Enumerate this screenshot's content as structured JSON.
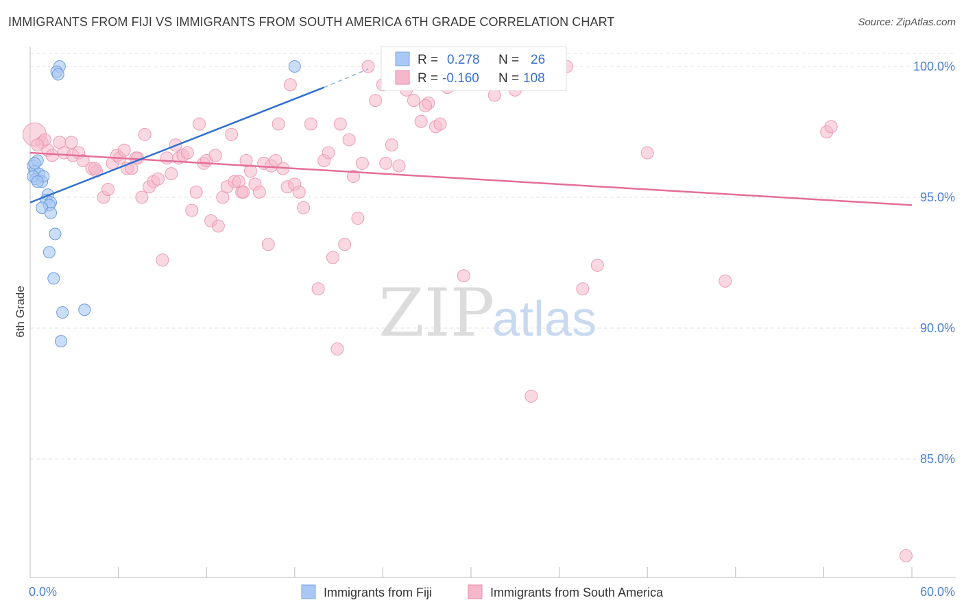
{
  "header": {
    "title": "IMMIGRANTS FROM FIJI VS IMMIGRANTS FROM SOUTH AMERICA 6TH GRADE CORRELATION CHART",
    "source": "Source: ZipAtlas.com"
  },
  "watermark": {
    "zip": "ZIP",
    "atlas": "atlas"
  },
  "chart_data": {
    "type": "scatter",
    "title": "IMMIGRANTS FROM FIJI VS IMMIGRANTS FROM SOUTH AMERICA 6TH GRADE CORRELATION CHART",
    "xlabel": "",
    "ylabel": "6th Grade",
    "xlim": [
      0,
      60
    ],
    "ylim": [
      80.5,
      100.8
    ],
    "x_tick_labels": [
      "0.0%",
      "60.0%"
    ],
    "y_ticks": [
      100,
      95,
      90,
      85
    ],
    "y_tick_labels": [
      "100.0%",
      "95.0%",
      "90.0%",
      "85.0%"
    ],
    "grid": true,
    "legend_position": "top-center",
    "colors": {
      "fiji": "#a9c8f3",
      "fiji_line": "#2f6fd0",
      "sa": "#f5b8ca",
      "sa_line": "#e46e98"
    },
    "legend": [
      {
        "r_label": "R =",
        "r": "0.278",
        "n_label": "N =",
        "n": "26"
      },
      {
        "r_label": "R =",
        "r": "-0.160",
        "n_label": "N =",
        "n": "108"
      }
    ],
    "series": [
      {
        "name": "Immigrants from Fiji",
        "trend": {
          "x": [
            0,
            20
          ],
          "y": [
            94.8,
            99.2
          ],
          "dashed_to": [
            23,
            99.9
          ]
        },
        "points": [
          [
            2.0,
            100.0
          ],
          [
            1.8,
            99.8
          ],
          [
            1.9,
            99.7
          ],
          [
            18.0,
            100.0
          ],
          [
            0.2,
            96.2
          ],
          [
            0.5,
            96.4
          ],
          [
            0.3,
            96.0
          ],
          [
            0.6,
            95.9
          ],
          [
            0.4,
            95.7
          ],
          [
            0.2,
            95.8
          ],
          [
            0.8,
            95.6
          ],
          [
            0.9,
            95.8
          ],
          [
            0.5,
            95.6
          ],
          [
            1.2,
            95.1
          ],
          [
            1.1,
            94.9
          ],
          [
            1.4,
            94.8
          ],
          [
            1.3,
            94.7
          ],
          [
            0.8,
            94.6
          ],
          [
            1.4,
            94.4
          ],
          [
            1.7,
            93.6
          ],
          [
            1.3,
            92.9
          ],
          [
            1.6,
            91.9
          ],
          [
            2.2,
            90.6
          ],
          [
            3.7,
            90.7
          ],
          [
            2.1,
            89.5
          ],
          [
            0.3,
            96.3
          ]
        ]
      },
      {
        "name": "Immigrants from South America",
        "trend": {
          "x": [
            0,
            60
          ],
          "y": [
            96.7,
            94.7
          ]
        },
        "points": [
          [
            0.3,
            97.4
          ],
          [
            0.8,
            97.1
          ],
          [
            1.2,
            96.8
          ],
          [
            1.5,
            96.6
          ],
          [
            2.0,
            97.1
          ],
          [
            2.3,
            96.7
          ],
          [
            2.8,
            97.1
          ],
          [
            2.9,
            96.6
          ],
          [
            3.3,
            96.7
          ],
          [
            3.6,
            96.4
          ],
          [
            4.2,
            96.1
          ],
          [
            4.5,
            96.0
          ],
          [
            5.0,
            95.0
          ],
          [
            5.3,
            95.3
          ],
          [
            5.6,
            96.3
          ],
          [
            5.9,
            96.6
          ],
          [
            6.1,
            96.5
          ],
          [
            6.4,
            96.8
          ],
          [
            6.6,
            96.1
          ],
          [
            6.9,
            96.1
          ],
          [
            7.3,
            96.5
          ],
          [
            7.6,
            95.0
          ],
          [
            7.8,
            97.4
          ],
          [
            8.1,
            95.4
          ],
          [
            8.4,
            95.6
          ],
          [
            8.7,
            95.7
          ],
          [
            9.0,
            92.6
          ],
          [
            9.3,
            96.5
          ],
          [
            9.6,
            95.9
          ],
          [
            9.9,
            97.0
          ],
          [
            10.1,
            96.5
          ],
          [
            10.4,
            96.6
          ],
          [
            10.7,
            96.7
          ],
          [
            11.0,
            94.5
          ],
          [
            11.3,
            95.2
          ],
          [
            11.5,
            97.8
          ],
          [
            11.8,
            96.3
          ],
          [
            12.0,
            96.4
          ],
          [
            12.3,
            94.1
          ],
          [
            12.6,
            96.6
          ],
          [
            12.8,
            93.9
          ],
          [
            13.1,
            95.0
          ],
          [
            13.4,
            95.4
          ],
          [
            13.7,
            97.4
          ],
          [
            13.9,
            95.6
          ],
          [
            14.2,
            95.6
          ],
          [
            14.4,
            95.2
          ],
          [
            14.7,
            96.4
          ],
          [
            15.0,
            96.0
          ],
          [
            15.3,
            95.5
          ],
          [
            15.6,
            95.2
          ],
          [
            15.9,
            96.3
          ],
          [
            16.2,
            93.2
          ],
          [
            16.4,
            96.2
          ],
          [
            16.7,
            96.4
          ],
          [
            16.9,
            97.8
          ],
          [
            17.2,
            96.1
          ],
          [
            17.5,
            95.4
          ],
          [
            17.7,
            99.3
          ],
          [
            18.0,
            95.5
          ],
          [
            18.3,
            95.2
          ],
          [
            18.6,
            94.6
          ],
          [
            19.1,
            97.8
          ],
          [
            19.6,
            91.5
          ],
          [
            20.0,
            96.4
          ],
          [
            20.3,
            96.7
          ],
          [
            20.6,
            92.7
          ],
          [
            20.9,
            89.2
          ],
          [
            21.1,
            97.8
          ],
          [
            21.4,
            93.2
          ],
          [
            21.7,
            97.2
          ],
          [
            22.0,
            95.8
          ],
          [
            22.3,
            94.2
          ],
          [
            22.6,
            96.3
          ],
          [
            23.0,
            100.0
          ],
          [
            23.5,
            98.7
          ],
          [
            24.2,
            96.3
          ],
          [
            24.6,
            97.0
          ],
          [
            25.1,
            96.2
          ],
          [
            25.6,
            99.1
          ],
          [
            26.1,
            98.7
          ],
          [
            26.6,
            97.9
          ],
          [
            27.1,
            98.6
          ],
          [
            27.6,
            97.7
          ],
          [
            27.9,
            97.8
          ],
          [
            28.4,
            99.2
          ],
          [
            29.5,
            92.0
          ],
          [
            31.0,
            99.8
          ],
          [
            31.6,
            98.9
          ],
          [
            32.1,
            99.9
          ],
          [
            33.0,
            99.1
          ],
          [
            34.1,
            87.4
          ],
          [
            35.8,
            99.6
          ],
          [
            36.5,
            100.0
          ],
          [
            37.6,
            91.5
          ],
          [
            38.6,
            92.4
          ],
          [
            42.0,
            96.7
          ],
          [
            47.3,
            91.8
          ],
          [
            54.2,
            97.5
          ],
          [
            54.5,
            97.7
          ],
          [
            59.6,
            81.3
          ],
          [
            1.0,
            97.2
          ],
          [
            0.5,
            97.0
          ],
          [
            4.4,
            96.1
          ],
          [
            7.2,
            96.5
          ],
          [
            14.5,
            95.2
          ],
          [
            24.0,
            99.3
          ],
          [
            26.9,
            98.5
          ]
        ]
      }
    ]
  },
  "bottom_legend": [
    {
      "label": "Immigrants from Fiji"
    },
    {
      "label": "Immigrants from South America"
    }
  ]
}
